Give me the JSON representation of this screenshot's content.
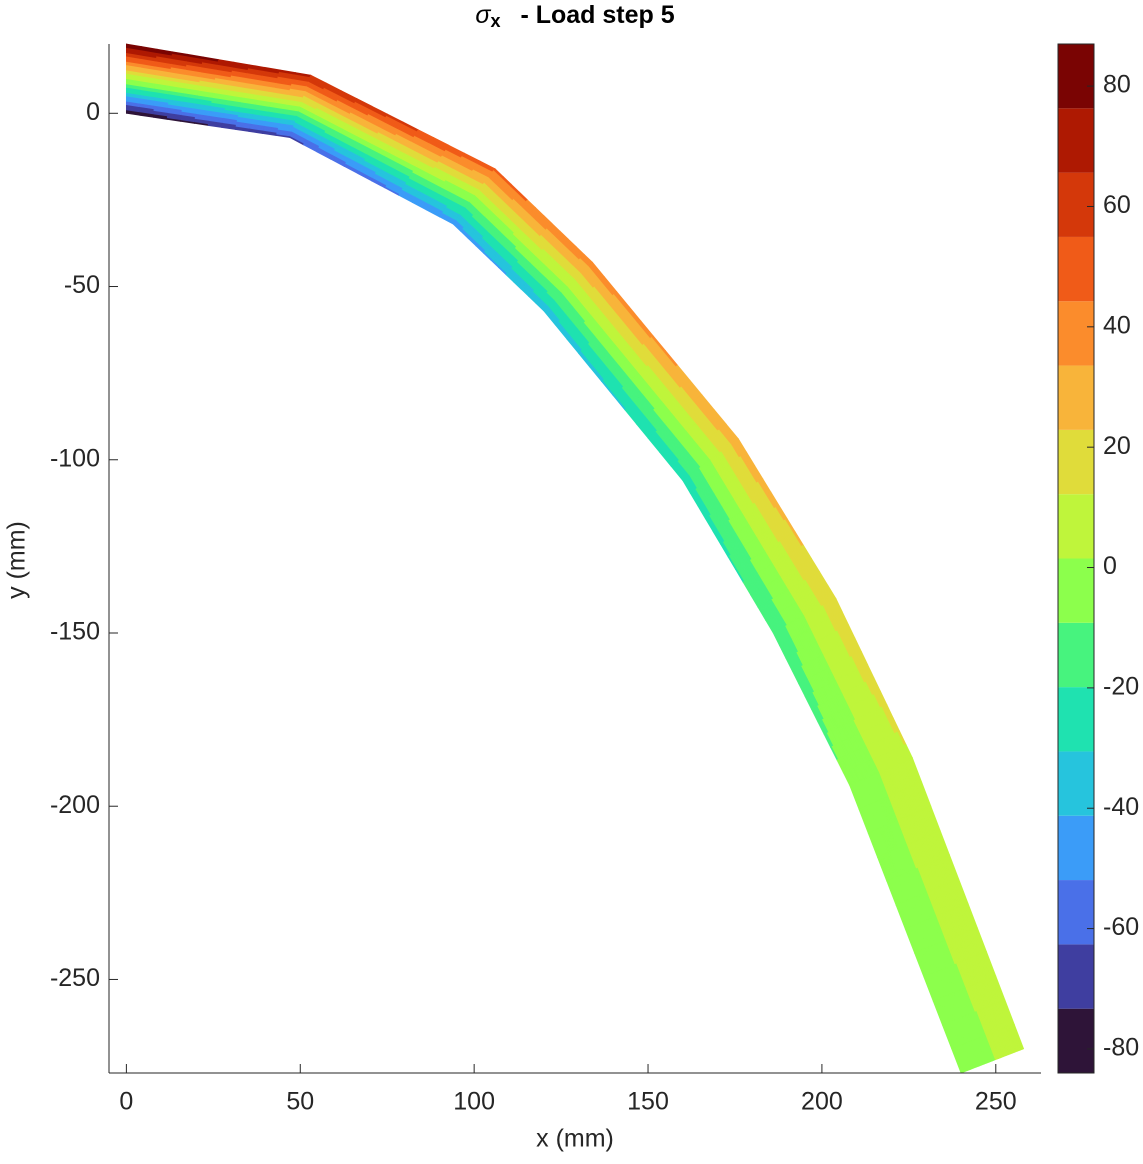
{
  "chart_data": {
    "type": "contour",
    "title": {
      "symbol": "σ",
      "subscript": "x",
      "text": "-  Load step 5"
    },
    "xlabel": "x (mm)",
    "ylabel": "y (mm)",
    "xlim": [
      -5,
      263
    ],
    "ylim": [
      -277,
      20
    ],
    "xticks": [
      0,
      50,
      100,
      150,
      200,
      250
    ],
    "yticks": [
      -250,
      -200,
      -150,
      -100,
      -50,
      0
    ],
    "sections": [
      {
        "top": [
          0,
          20
        ],
        "bottom": [
          0,
          0
        ],
        "stress_top": 87,
        "stress_bottom": -84
      },
      {
        "top": [
          53,
          11
        ],
        "bottom": [
          47,
          -7
        ],
        "stress_top": 68,
        "stress_bottom": -66
      },
      {
        "top": [
          106,
          -16
        ],
        "bottom": [
          94,
          -32
        ],
        "stress_top": 48,
        "stress_bottom": -48
      },
      {
        "top": [
          134,
          -43
        ],
        "bottom": [
          120,
          -57
        ],
        "stress_top": 40,
        "stress_bottom": -38
      },
      {
        "top": [
          176,
          -94
        ],
        "bottom": [
          160,
          -106
        ],
        "stress_top": 30,
        "stress_bottom": -27
      },
      {
        "top": [
          204,
          -140
        ],
        "bottom": [
          186,
          -150
        ],
        "stress_top": 20,
        "stress_bottom": -17
      },
      {
        "top": [
          226,
          -186
        ],
        "bottom": [
          208,
          -194
        ],
        "stress_top": 12,
        "stress_bottom": -8
      },
      {
        "top": [
          258,
          -270
        ],
        "bottom": [
          240,
          -277
        ],
        "stress_top": 5,
        "stress_bottom": -3
      }
    ],
    "clim": [
      -84,
      87
    ],
    "cticks": [
      -80,
      -60,
      -40,
      -20,
      0,
      20,
      40,
      60,
      80
    ],
    "colors": [
      "#2e1438",
      "#3f3ea0",
      "#4a70e8",
      "#3b9cf8",
      "#26c4dd",
      "#1fe2b0",
      "#47f37e",
      "#8cff4c",
      "#bff53b",
      "#e0dc3a",
      "#f8b43a",
      "#fb8c2c",
      "#f05b18",
      "#d4380a",
      "#ae1902",
      "#7a0403"
    ]
  }
}
